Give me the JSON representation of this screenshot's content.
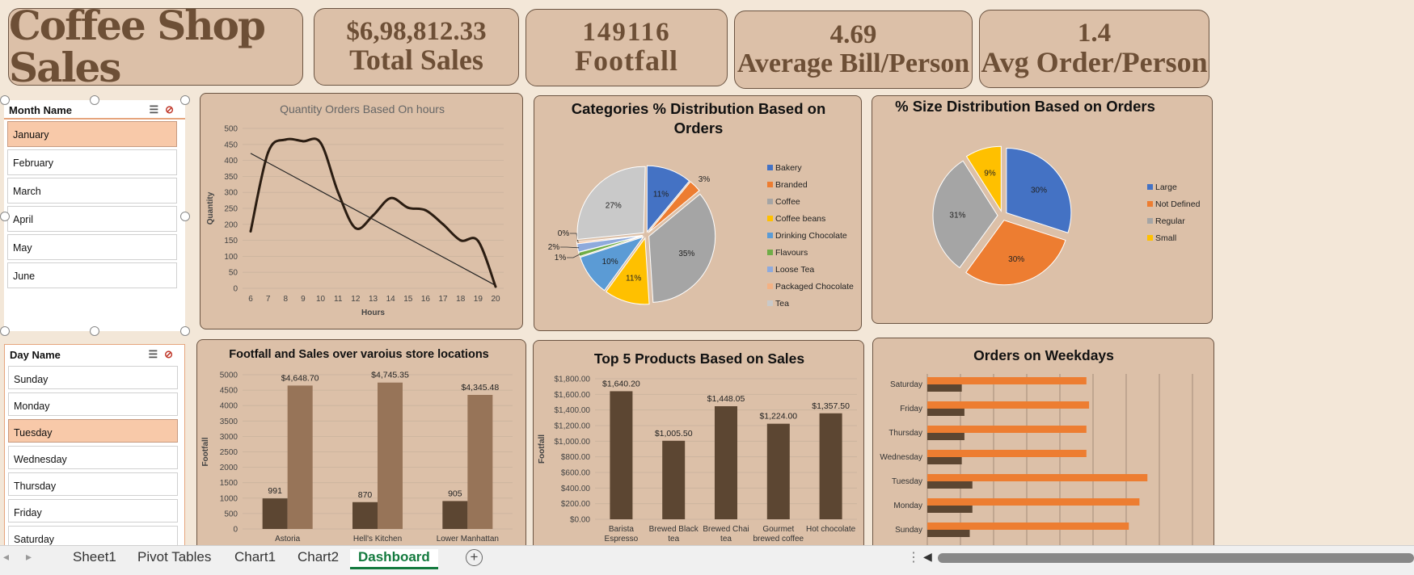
{
  "kpis": {
    "title": "Coffee Shop Sales",
    "total_sales_value": "$6,98,812.33",
    "total_sales_label": "Total Sales",
    "footfall_value": "149116",
    "footfall_label": "Footfall",
    "avg_bill_value": "4.69",
    "avg_bill_label": "Average Bill/Person",
    "avg_order_value": "1.4",
    "avg_order_label": "Avg Order/Person"
  },
  "slicers": {
    "month": {
      "title": "Month Name",
      "items": [
        "January",
        "February",
        "March",
        "April",
        "May",
        "June"
      ],
      "selected": "January"
    },
    "day": {
      "title": "Day Name",
      "items": [
        "Sunday",
        "Monday",
        "Tuesday",
        "Wednesday",
        "Thursday",
        "Friday",
        "Saturday"
      ],
      "selected": "Tuesday"
    }
  },
  "colors": {
    "dark_brown": "#5c4632",
    "light_brown": "#977458",
    "orange": "#ed7d31",
    "line": "#2b1d12"
  },
  "chart_data": [
    {
      "id": "hours",
      "type": "line",
      "title": "Quantity Orders Based On hours",
      "xlabel": "Hours",
      "ylabel": "Quantity",
      "x": [
        6,
        7,
        8,
        9,
        10,
        11,
        12,
        13,
        14,
        15,
        16,
        17,
        18,
        19,
        20
      ],
      "values": [
        178,
        425,
        465,
        460,
        455,
        300,
        188,
        228,
        282,
        252,
        244,
        200,
        150,
        148,
        5
      ],
      "trendline": [
        422,
        4
      ],
      "ylim": [
        0,
        500
      ],
      "yticks": [
        0,
        50,
        100,
        150,
        200,
        250,
        300,
        350,
        400,
        450,
        500
      ]
    },
    {
      "id": "categories",
      "type": "pie",
      "title": "Categories % Distribution Based on Orders",
      "labels": [
        "Bakery",
        "Branded",
        "Coffee",
        "Coffee beans",
        "Drinking Chocolate",
        "Flavours",
        "Loose Tea",
        "Packaged Chocolate",
        "Tea"
      ],
      "values": [
        11,
        3,
        35,
        11,
        10,
        1,
        2,
        0,
        27
      ],
      "data_labels": [
        "11%",
        "3%",
        "35%",
        "11%",
        "10%",
        "1%",
        "2%",
        "0%",
        "27%"
      ],
      "colors": [
        "#4472c4",
        "#ed7d31",
        "#a5a5a5",
        "#ffc000",
        "#5b9bd5",
        "#70ad47",
        "#8faadc",
        "#f4b183",
        "#c9c9c9"
      ],
      "legend": "right"
    },
    {
      "id": "sizes",
      "type": "pie",
      "title": "% Size Distribution Based on Orders",
      "labels": [
        "Large",
        "Not Defined",
        "Regular",
        "Small"
      ],
      "values": [
        30,
        30,
        31,
        9
      ],
      "data_labels": [
        "30%",
        "30%",
        "31%",
        "9%"
      ],
      "colors": [
        "#4472c4",
        "#ed7d31",
        "#a5a5a5",
        "#ffc000"
      ],
      "legend": "right"
    },
    {
      "id": "locations",
      "type": "bar",
      "title": "Footfall and Sales over varoius store locations",
      "ylabel": "Footfall",
      "categories": [
        "Astoria",
        "Hell's Kitchen",
        "Lower Manhattan"
      ],
      "series": [
        {
          "values": [
            991,
            870,
            905
          ],
          "labels": [
            "991",
            "870",
            "905"
          ]
        },
        {
          "values": [
            4648.7,
            4745.35,
            4345.48
          ],
          "labels": [
            "$4,648.70",
            "$4,745.35",
            "$4,345.48"
          ]
        }
      ],
      "ylim": [
        0,
        5000
      ],
      "yticks": [
        0,
        500,
        1000,
        1500,
        2000,
        2500,
        3000,
        3500,
        4000,
        4500,
        5000
      ]
    },
    {
      "id": "products",
      "type": "bar",
      "title": "Top 5 Products Based on Sales",
      "ylabel": "Footfall",
      "categories": [
        [
          "Barista",
          "Espresso"
        ],
        [
          "Brewed Black",
          "tea"
        ],
        [
          "Brewed Chai",
          "tea"
        ],
        [
          "Gourmet",
          "brewed coffee"
        ],
        [
          "Hot chocolate"
        ]
      ],
      "values": [
        1640.2,
        1005.5,
        1448.05,
        1224.0,
        1357.5
      ],
      "labels": [
        "$1,640.20",
        "$1,005.50",
        "$1,448.05",
        "$1,224.00",
        "$1,357.50"
      ],
      "ylim": [
        0,
        1800
      ],
      "yticks": [
        "$0.00",
        "$200.00",
        "$400.00",
        "$600.00",
        "$800.00",
        "$1,000.00",
        "$1,200.00",
        "$1,400.00",
        "$1,600.00",
        "$1,800.00"
      ]
    },
    {
      "id": "weekdays",
      "type": "bar",
      "orientation": "horizontal",
      "title": "Orders on Weekdays",
      "categories": [
        "Saturday",
        "Friday",
        "Thursday",
        "Wednesday",
        "Tuesday",
        "Monday",
        "Sunday"
      ],
      "series": [
        {
          "values": [
            0.6,
            0.61,
            0.6,
            0.6,
            0.83,
            0.8,
            0.76
          ]
        },
        {
          "values": [
            0.13,
            0.14,
            0.14,
            0.13,
            0.17,
            0.17,
            0.16
          ]
        }
      ]
    }
  ],
  "tabs": {
    "items": [
      "Sheet1",
      "Pivot Tables",
      "Chart1",
      "Chart2",
      "Dashboard"
    ],
    "active": "Dashboard"
  }
}
